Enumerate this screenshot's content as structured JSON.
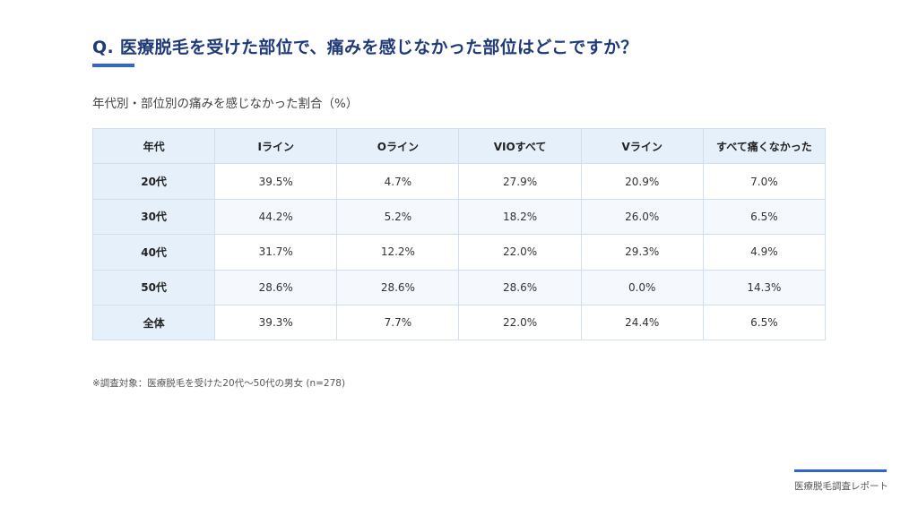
{
  "question": "Q. 医療脱毛を受けた部位で、痛みを感じなかった部位はどこですか？",
  "subtitle": "年代別・部位別の痛みを感じなかった割合（%）",
  "footnote": "※調査対象：医療脱毛を受けた20代〜50代の男女 (n=278)",
  "footer_label": "医療脱毛調査レポート",
  "colors": {
    "title": "#1f3a78",
    "accent": "#2f66d0",
    "header_bg": "#e6f0fb",
    "border": "#cfdff0"
  },
  "chart_data": {
    "type": "table",
    "columns": [
      "年代",
      "Iライン",
      "Oライン",
      "VIOすべて",
      "Vライン",
      "すべて痛くなかった"
    ],
    "rows": [
      {
        "label": "20代",
        "values": [
          "39.5%",
          "4.7%",
          "27.9%",
          "20.9%",
          "7.0%"
        ]
      },
      {
        "label": "30代",
        "values": [
          "44.2%",
          "5.2%",
          "18.2%",
          "26.0%",
          "6.5%"
        ]
      },
      {
        "label": "40代",
        "values": [
          "31.7%",
          "12.2%",
          "22.0%",
          "29.3%",
          "4.9%"
        ]
      },
      {
        "label": "50代",
        "values": [
          "28.6%",
          "28.6%",
          "28.6%",
          "0.0%",
          "14.3%"
        ]
      },
      {
        "label": "全体",
        "values": [
          "39.3%",
          "7.7%",
          "22.0%",
          "24.4%",
          "6.5%"
        ]
      }
    ]
  }
}
